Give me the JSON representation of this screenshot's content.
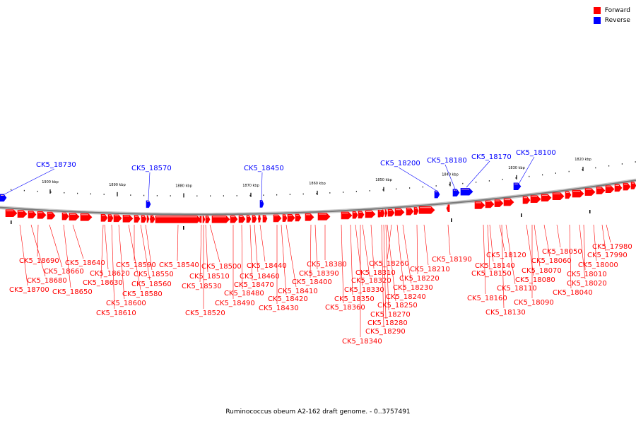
{
  "legend": {
    "forward": {
      "label": "Forward",
      "color": "#ff0000"
    },
    "reverse": {
      "label": "Reverse",
      "color": "#0000ff"
    }
  },
  "caption": "Ruminococcus obeum A2-162 draft genome. - 0..3757491",
  "scale_ticks": [
    "1900 kbp",
    "1890 kbp",
    "1880 kbp",
    "1870 kbp",
    "1860 kbp",
    "1850 kbp",
    "1840 kbp",
    "1830 kbp",
    "1820 kbp"
  ],
  "reverse_genes": [
    "CK5_18730",
    "CK5_18570",
    "CK5_18450",
    "CK5_18200",
    "CK5_18180",
    "CK5_18170",
    "CK5_18100"
  ],
  "forward_genes": [
    "CK5_18690",
    "CK5_18680",
    "CK5_18700",
    "CK5_18660",
    "CK5_18650",
    "CK5_18640",
    "CK5_18620",
    "CK5_18630",
    "CK5_18610",
    "CK5_18600",
    "CK5_18590",
    "CK5_18550",
    "CK5_18560",
    "CK5_18580",
    "CK5_18540",
    "CK5_18520",
    "CK5_18530",
    "CK5_18510",
    "CK5_18500",
    "CK5_18490",
    "CK5_18480",
    "CK5_18470",
    "CK5_18460",
    "CK5_18440",
    "CK5_18430",
    "CK5_18420",
    "CK5_18410",
    "CK5_18400",
    "CK5_18390",
    "CK5_18380",
    "CK5_18360",
    "CK5_18350",
    "CK5_18340",
    "CK5_18330",
    "CK5_18320",
    "CK5_18310",
    "CK5_18290",
    "CK5_18280",
    "CK5_18270",
    "CK5_18260",
    "CK5_18250",
    "CK5_18240",
    "CK5_18230",
    "CK5_18220",
    "CK5_18210",
    "CK5_18190",
    "CK5_18160",
    "CK5_18150",
    "CK5_18140",
    "CK5_18130",
    "CK5_18120",
    "CK5_18110",
    "CK5_18090",
    "CK5_18080",
    "CK5_18070",
    "CK5_18060",
    "CK5_18050",
    "CK5_18040",
    "CK5_18020",
    "CK5_18010",
    "CK5_18000",
    "CK5_17990",
    "CK5_17980"
  ]
}
